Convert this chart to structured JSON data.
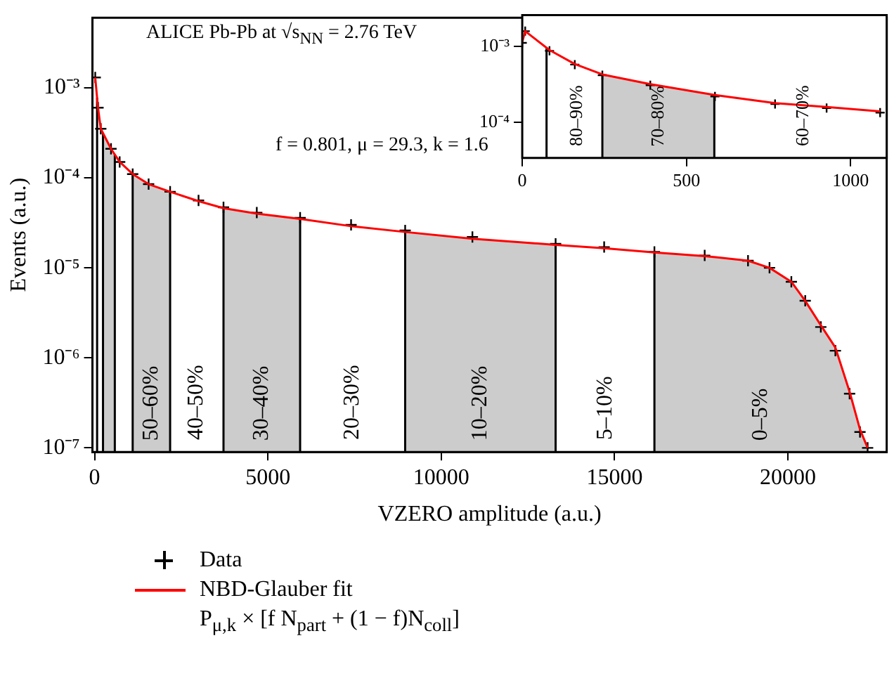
{
  "chart_data": [
    {
      "type": "line",
      "log": "y",
      "xlim": [
        -60,
        22850
      ],
      "xticks": [
        0,
        5000,
        10000,
        15000,
        20000
      ],
      "ylim": [
        9e-08,
        0.006
      ],
      "yticks": [
        {
          "value": 1e-07,
          "label": "10⁻⁷"
        },
        {
          "value": 1e-06,
          "label": "10⁻⁶"
        },
        {
          "value": 1e-05,
          "label": "10⁻⁵"
        },
        {
          "value": 0.0001,
          "label": "10⁻⁴"
        },
        {
          "value": 0.001,
          "label": "10⁻³"
        }
      ],
      "xlabel": "VZERO amplitude (a.u.)",
      "ylabel": "Events (a.u.)",
      "annotations": [
        "ALICE Pb-Pb at √s$_{NN}$ = 2.76 TeV",
        "f = 0.801, μ = 29.3, k = 1.6",
        "40–50%",
        "20–30%",
        "5–10%"
      ],
      "legend": "bottom",
      "ref_lines": [
        {
          "axis": "x",
          "value": 74
        },
        {
          "axis": "x",
          "value": 244
        },
        {
          "axis": "x",
          "value": 585
        },
        {
          "axis": "x",
          "value": 1100
        },
        {
          "axis": "x",
          "value": 2180
        },
        {
          "axis": "x",
          "value": 3720
        },
        {
          "axis": "x",
          "value": 5930
        },
        {
          "axis": "x",
          "value": 8960
        },
        {
          "axis": "x",
          "value": 13300
        },
        {
          "axis": "x",
          "value": 16150
        }
      ],
      "bands": [
        {
          "axis": "x",
          "from": 244,
          "to": 585,
          "color": "#cccccc"
        },
        {
          "axis": "x",
          "from": 1100,
          "to": 2180,
          "label": "50–60%",
          "color": "#cccccc"
        },
        {
          "axis": "x",
          "from": 3720,
          "to": 5930,
          "label": "30–40%",
          "color": "#cccccc"
        },
        {
          "axis": "x",
          "from": 8960,
          "to": 13300,
          "label": "10–20%",
          "color": "#cccccc"
        },
        {
          "axis": "x",
          "from": 16150,
          "to": 22300,
          "label": "0–5%",
          "color": "#cccccc"
        }
      ],
      "series": [
        {
          "name": "Data",
          "type": "scatter",
          "marker": "cross",
          "color": "#000000",
          "x": [
            20,
            100,
            180,
            475,
            725,
            1100,
            1560,
            2180,
            3000,
            3720,
            4680,
            5930,
            7400,
            8960,
            10900,
            13300,
            14700,
            16150,
            17600,
            18850,
            19470,
            20100,
            20500,
            20950,
            21370,
            21780,
            22080,
            22300
          ],
          "values": [
            0.0013,
            0.0006,
            0.00035,
            0.00021,
            0.00015,
            0.00011,
            8.5e-05,
            7e-05,
            5.6e-05,
            4.7e-05,
            4.1e-05,
            3.6e-05,
            3e-05,
            2.6e-05,
            2.2e-05,
            1.85e-05,
            1.7e-05,
            1.5e-05,
            1.37e-05,
            1.2e-05,
            1e-05,
            7e-06,
            4.3e-06,
            2.2e-06,
            1.2e-06,
            4e-07,
            1.5e-07,
            1e-07
          ]
        },
        {
          "name": "NBD-Glauber fit\nP$_{μ,k}$ × [f N$_{part}$ + (1 − f)N$_{coll}$]",
          "color": "#ff0000",
          "x": [
            20,
            100,
            180,
            475,
            725,
            1100,
            1560,
            2180,
            3000,
            3720,
            4680,
            5930,
            7400,
            8960,
            10900,
            13300,
            14700,
            16150,
            17600,
            18850,
            19470,
            20100,
            20500,
            20950,
            21370,
            21780,
            22080,
            22300
          ],
          "values": [
            0.0013,
            0.0006,
            0.00035,
            0.00021,
            0.00015,
            0.00011,
            8.5e-05,
            7e-05,
            5.5e-05,
            4.6e-05,
            4e-05,
            3.5e-05,
            2.9e-05,
            2.5e-05,
            2.1e-05,
            1.8e-05,
            1.65e-05,
            1.48e-05,
            1.35e-05,
            1.2e-05,
            1e-05,
            7e-06,
            4.3e-06,
            2.3e-06,
            1.3e-06,
            4.2e-07,
            1.6e-07,
            1e-07
          ]
        }
      ]
    },
    {
      "type": "line",
      "log": "y",
      "xlim": [
        0,
        1110
      ],
      "xticks": [
        0,
        500,
        1000
      ],
      "ylim": [
        3.4e-05,
        0.0026
      ],
      "yticks": [
        {
          "value": 0.0001,
          "label": "10⁻⁴"
        },
        {
          "value": 0.001,
          "label": "10⁻³"
        }
      ],
      "annotations": [
        "80–90%",
        "60–70%"
      ],
      "ref_lines": [
        {
          "axis": "x",
          "value": 74
        },
        {
          "axis": "x",
          "value": 244
        },
        {
          "axis": "x",
          "value": 585
        }
      ],
      "bands": [
        {
          "axis": "x",
          "from": 244,
          "to": 585,
          "label": "70–80%",
          "color": "#cccccc"
        }
      ],
      "series": [
        {
          "type": "scatter",
          "marker": "cross",
          "color": "#000000",
          "x": [
            0,
            9,
            83,
            160,
            244,
            390,
            587,
            770,
            927,
            1090
          ],
          "values": [
            0.00112,
            0.0016,
            0.00088,
            0.00058,
            0.00042,
            0.00031,
            0.00022,
            0.000175,
            0.000155,
            0.000135
          ]
        },
        {
          "color": "#ff0000",
          "x": [
            0,
            9,
            83,
            160,
            244,
            390,
            587,
            770,
            927,
            1090
          ],
          "values": [
            0.00115,
            0.0016,
            0.0009,
            0.00059,
            0.00043,
            0.00032,
            0.00023,
            0.00018,
            0.00016,
            0.00014
          ]
        }
      ]
    }
  ]
}
